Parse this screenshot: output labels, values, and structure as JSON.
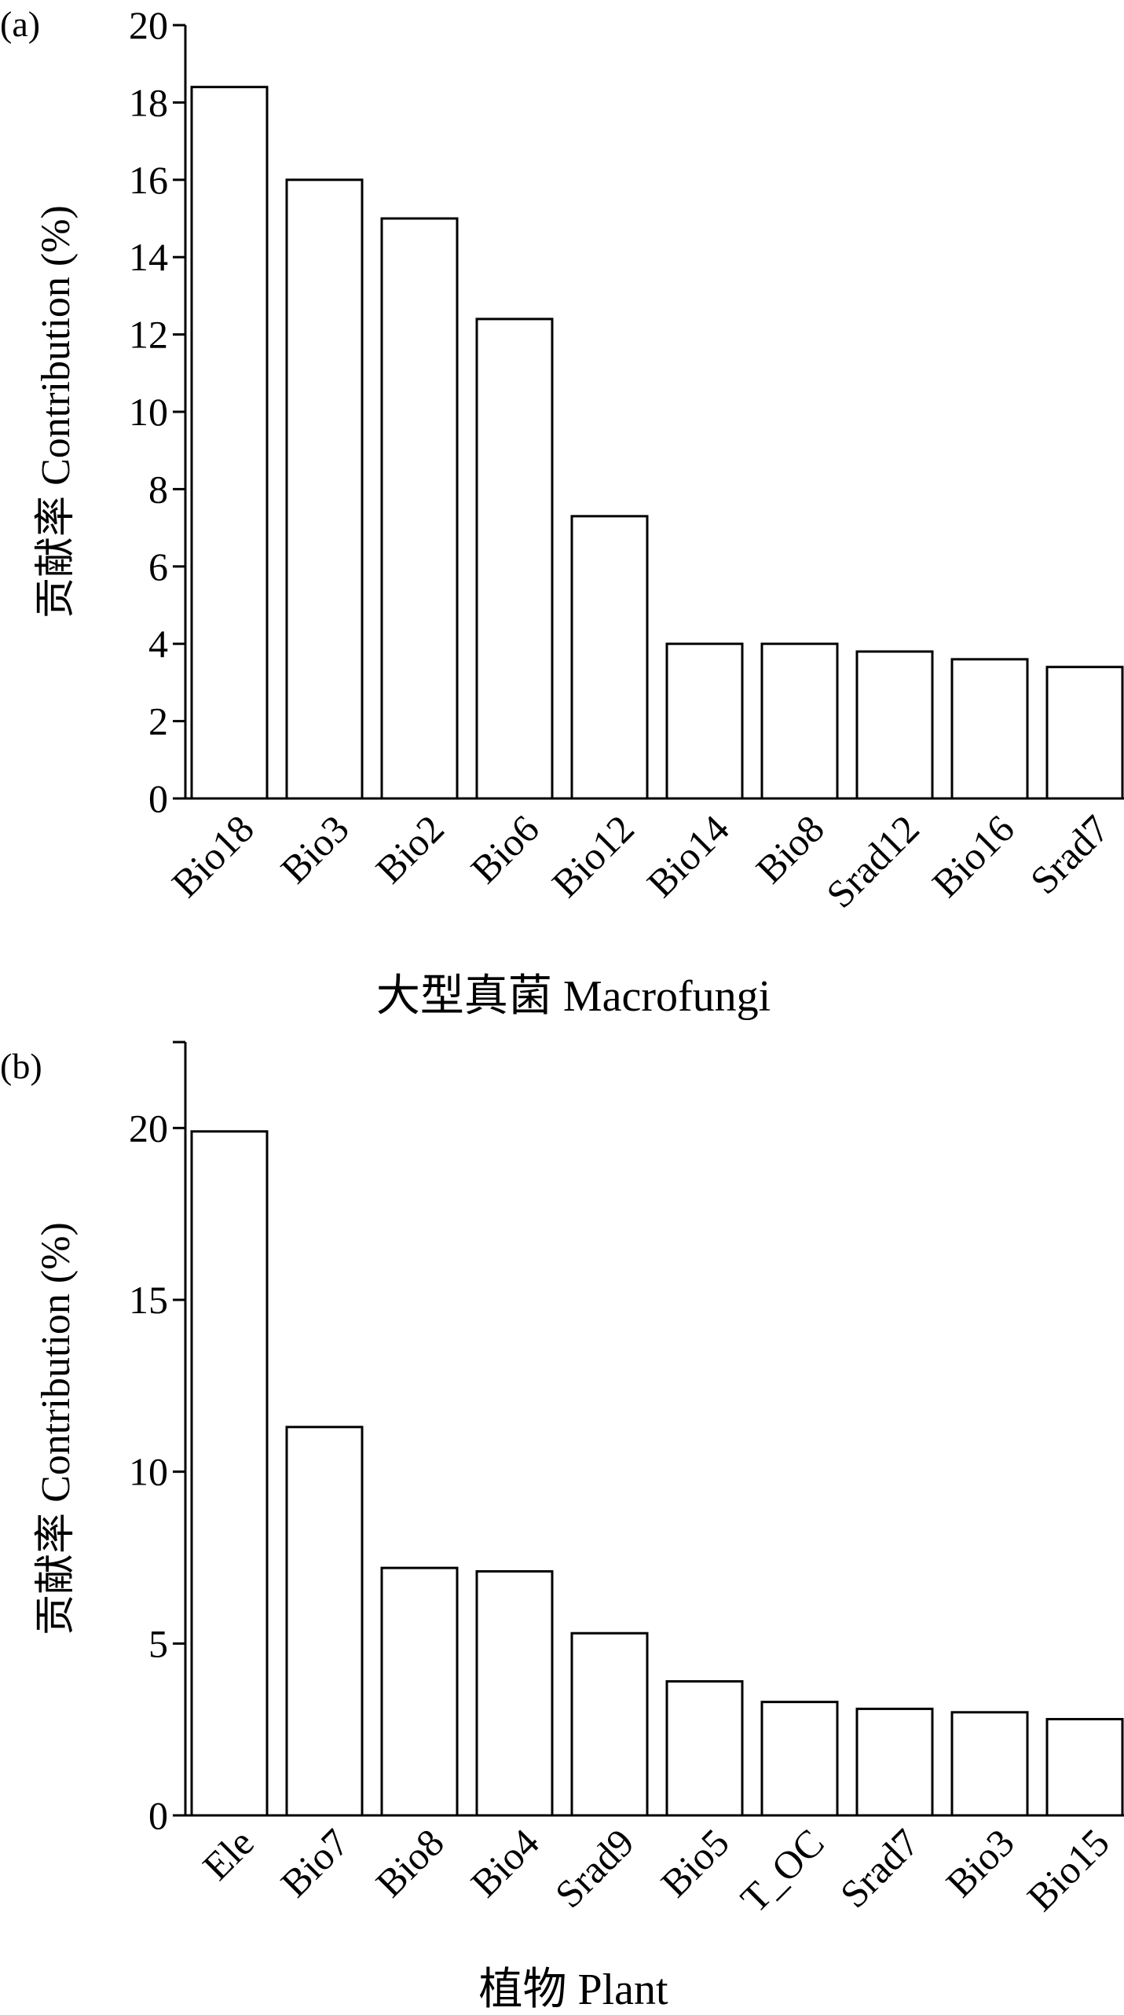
{
  "chart_data": [
    {
      "type": "bar",
      "panel_label": "(a)",
      "categories": [
        "Bio18",
        "Bio3",
        "Bio2",
        "Bio6",
        "Bio12",
        "Bio14",
        "Bio8",
        "Srad12",
        "Bio16",
        "Srad7"
      ],
      "values": [
        18.4,
        16.0,
        15.0,
        12.4,
        7.3,
        4.0,
        4.0,
        3.8,
        3.6,
        3.4
      ],
      "xlabel": "大型真菌 Macrofungi",
      "ylabel": "贡献率 Contribution (%)",
      "ylim": [
        0,
        20
      ],
      "yticks": [
        0,
        2,
        4,
        6,
        8,
        10,
        12,
        14,
        16,
        18,
        20
      ],
      "grid": false,
      "bar_fill": "#ffffff",
      "bar_stroke": "#000000"
    },
    {
      "type": "bar",
      "panel_label": "(b)",
      "categories": [
        "Ele",
        "Bio7",
        "Bio8",
        "Bio4",
        "Srad9",
        "Bio5",
        "T_OC",
        "Srad7",
        "Bio3",
        "Bio15"
      ],
      "values": [
        19.9,
        11.3,
        7.2,
        7.1,
        5.3,
        3.9,
        3.3,
        3.1,
        3.0,
        2.8
      ],
      "xlabel": "植物 Plant",
      "ylabel": "贡献率 Contribution (%)",
      "ylim": [
        0,
        22.5
      ],
      "yticks": [
        0,
        5,
        10,
        15,
        20
      ],
      "grid": false,
      "bar_fill": "#ffffff",
      "bar_stroke": "#000000"
    }
  ]
}
